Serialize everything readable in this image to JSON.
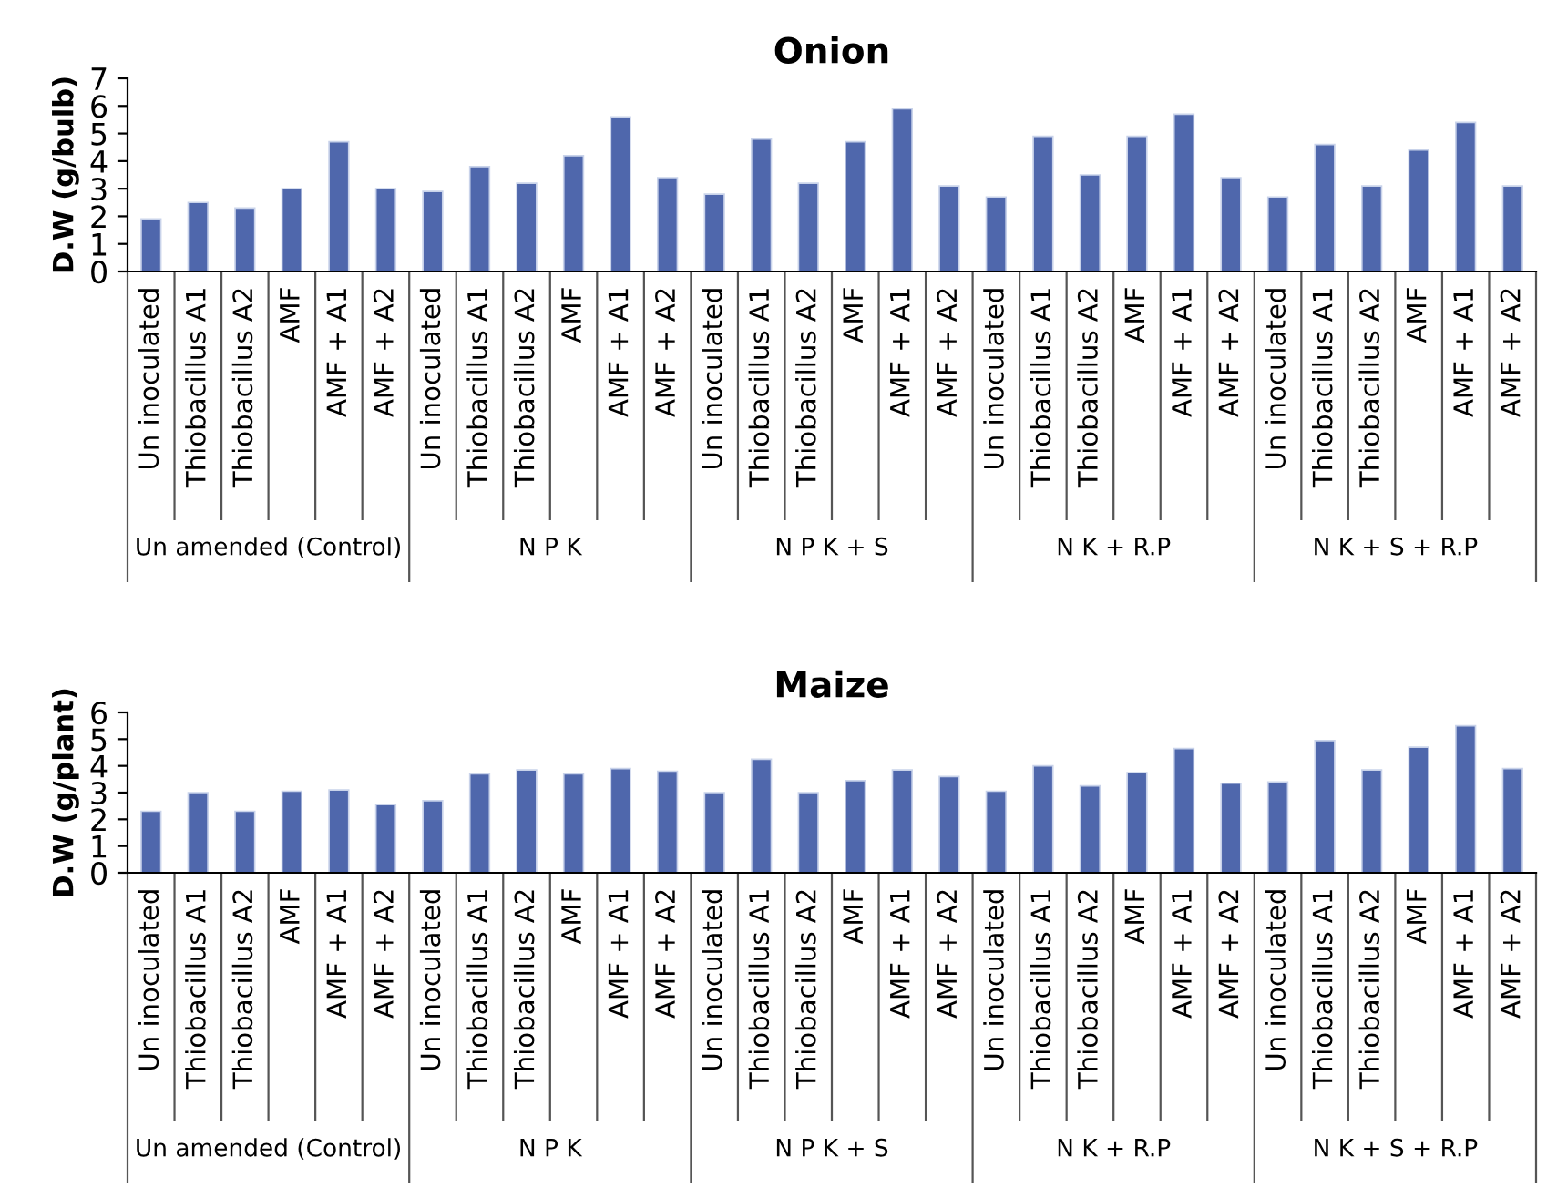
{
  "chart_data": [
    {
      "type": "bar",
      "title": "Onion",
      "ylabel": "D.W (g/bulb)",
      "categories": [
        "Un inoculated",
        "Thiobacillus A1",
        "Thiobacillus A2",
        "AMF",
        "AMF + A1",
        "AMF + A2",
        "Un inoculated",
        "Thiobacillus A1",
        "Thiobacillus A2",
        "AMF",
        "AMF + A1",
        "AMF + A2",
        "Un inoculated",
        "Thiobacillus A1",
        "Thiobacillus A2",
        "AMF",
        "AMF + A1",
        "AMF + A2",
        "Un inoculated",
        "Thiobacillus A1",
        "Thiobacillus A2",
        "AMF",
        "AMF + A1",
        "AMF + A2",
        "Un inoculated",
        "Thiobacillus A1",
        "Thiobacillus A2",
        "AMF",
        "AMF + A1",
        "AMF + A2"
      ],
      "values": [
        1.9,
        2.5,
        2.3,
        3.0,
        4.7,
        3.0,
        2.9,
        3.8,
        3.2,
        4.2,
        5.6,
        3.4,
        2.8,
        4.8,
        3.2,
        4.7,
        5.9,
        3.1,
        2.7,
        4.9,
        3.5,
        4.9,
        5.7,
        3.4,
        2.7,
        4.6,
        3.1,
        4.4,
        5.4,
        3.1
      ],
      "color": "#4f67ac",
      "ylim": [
        0,
        7
      ],
      "yticks": [
        0,
        1,
        2,
        3,
        4,
        5,
        6,
        7
      ],
      "grid": false,
      "legend": false,
      "annotations": [
        "Un amended (Control)",
        "N P K",
        "N P K + S",
        "N K + R.P",
        "N K + S + R.P"
      ]
    },
    {
      "type": "bar",
      "title": "Maize",
      "ylabel": "D.W (g/plant)",
      "categories": [
        "Un inoculated",
        "Thiobacillus A1",
        "Thiobacillus A2",
        "AMF",
        "AMF + A1",
        "AMF + A2",
        "Un inoculated",
        "Thiobacillus A1",
        "Thiobacillus A2",
        "AMF",
        "AMF + A1",
        "AMF + A2",
        "Un inoculated",
        "Thiobacillus A1",
        "Thiobacillus A2",
        "AMF",
        "AMF + A1",
        "AMF + A2",
        "Un inoculated",
        "Thiobacillus A1",
        "Thiobacillus A2",
        "AMF",
        "AMF + A1",
        "AMF + A2",
        "Un inoculated",
        "Thiobacillus A1",
        "Thiobacillus A2",
        "AMF",
        "AMF + A1",
        "AMF + A2"
      ],
      "values": [
        2.3,
        3.0,
        2.3,
        3.05,
        3.1,
        2.55,
        2.7,
        3.7,
        3.85,
        3.7,
        3.9,
        3.8,
        3.0,
        4.25,
        3.0,
        3.45,
        3.85,
        3.6,
        3.05,
        4.0,
        3.25,
        3.75,
        4.65,
        3.35,
        3.4,
        4.95,
        3.85,
        4.7,
        5.5,
        3.9
      ],
      "color": "#4f67ac",
      "ylim": [
        0,
        6
      ],
      "yticks": [
        0,
        1,
        2,
        3,
        4,
        5,
        6
      ],
      "grid": false,
      "legend": false,
      "annotations": [
        "Un amended (Control)",
        "N P K",
        "N P K + S",
        "N K + R.P",
        "N K + S + R.P"
      ]
    }
  ]
}
